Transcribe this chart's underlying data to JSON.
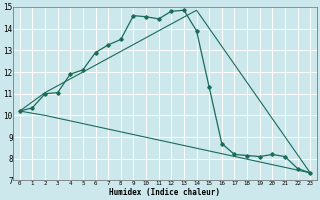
{
  "title": "",
  "xlabel": "Humidex (Indice chaleur)",
  "bg_color": "#cce8ec",
  "grid_color": "#ffffff",
  "line_color": "#1a6b5a",
  "xlim": [
    -0.5,
    23.5
  ],
  "ylim": [
    7,
    15
  ],
  "xticks": [
    0,
    1,
    2,
    3,
    4,
    5,
    6,
    7,
    8,
    9,
    10,
    11,
    12,
    13,
    14,
    15,
    16,
    17,
    18,
    19,
    20,
    21,
    22,
    23
  ],
  "yticks": [
    7,
    8,
    9,
    10,
    11,
    12,
    13,
    14,
    15
  ],
  "line1_x": [
    0,
    1,
    2,
    3,
    4,
    5,
    6,
    7,
    8,
    9,
    10,
    11,
    12,
    13,
    14,
    15,
    16,
    17,
    18,
    19,
    20,
    21,
    22,
    23
  ],
  "line1_y": [
    10.2,
    10.35,
    11.0,
    11.05,
    11.9,
    12.1,
    12.9,
    13.25,
    13.5,
    14.6,
    14.55,
    14.45,
    14.8,
    14.85,
    13.9,
    11.3,
    8.7,
    8.2,
    8.15,
    8.1,
    8.2,
    8.1,
    7.55,
    7.35
  ],
  "line2_x": [
    0,
    2,
    14,
    23
  ],
  "line2_y": [
    10.2,
    11.05,
    14.85,
    7.35
  ],
  "line3_x": [
    0,
    2,
    23
  ],
  "line3_y": [
    10.2,
    10.0,
    7.35
  ]
}
